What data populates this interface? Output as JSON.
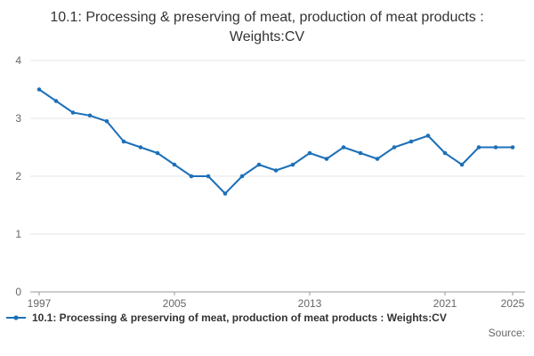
{
  "title": "10.1: Processing & preserving of meat, production of meat products : Weights:CV",
  "legend": {
    "label": "10.1: Processing & preserving of meat, production of meat products : Weights:CV"
  },
  "source": {
    "label": "Source:"
  },
  "colors": {
    "line": "#1d70b8",
    "grid": "#e6e6e6",
    "axis": "#999999",
    "tick_text": "#666666"
  },
  "chart_data": {
    "type": "line",
    "title": "10.1: Processing & preserving of meat, production of meat products : Weights:CV",
    "xlabel": "",
    "ylabel": "",
    "ylim": [
      0,
      4
    ],
    "y_ticks": [
      0,
      1,
      2,
      3,
      4
    ],
    "x_ticks": [
      1997,
      2005,
      2013,
      2021,
      2025
    ],
    "grid": true,
    "legend_position": "bottom",
    "x": [
      1997,
      1998,
      1999,
      2000,
      2001,
      2002,
      2003,
      2004,
      2005,
      2006,
      2007,
      2008,
      2009,
      2010,
      2011,
      2012,
      2013,
      2014,
      2015,
      2016,
      2017,
      2018,
      2019,
      2020,
      2021,
      2022,
      2023,
      2024,
      2025
    ],
    "series": [
      {
        "name": "10.1: Processing & preserving of meat, production of meat products : Weights:CV",
        "values": [
          3.5,
          3.3,
          3.1,
          3.05,
          2.95,
          2.6,
          2.5,
          2.4,
          2.2,
          2.0,
          2.0,
          1.7,
          2.0,
          2.2,
          2.1,
          2.2,
          2.4,
          2.3,
          2.5,
          2.4,
          2.3,
          2.5,
          2.6,
          2.7,
          2.4,
          2.2,
          2.5,
          2.5,
          2.5
        ]
      }
    ]
  }
}
